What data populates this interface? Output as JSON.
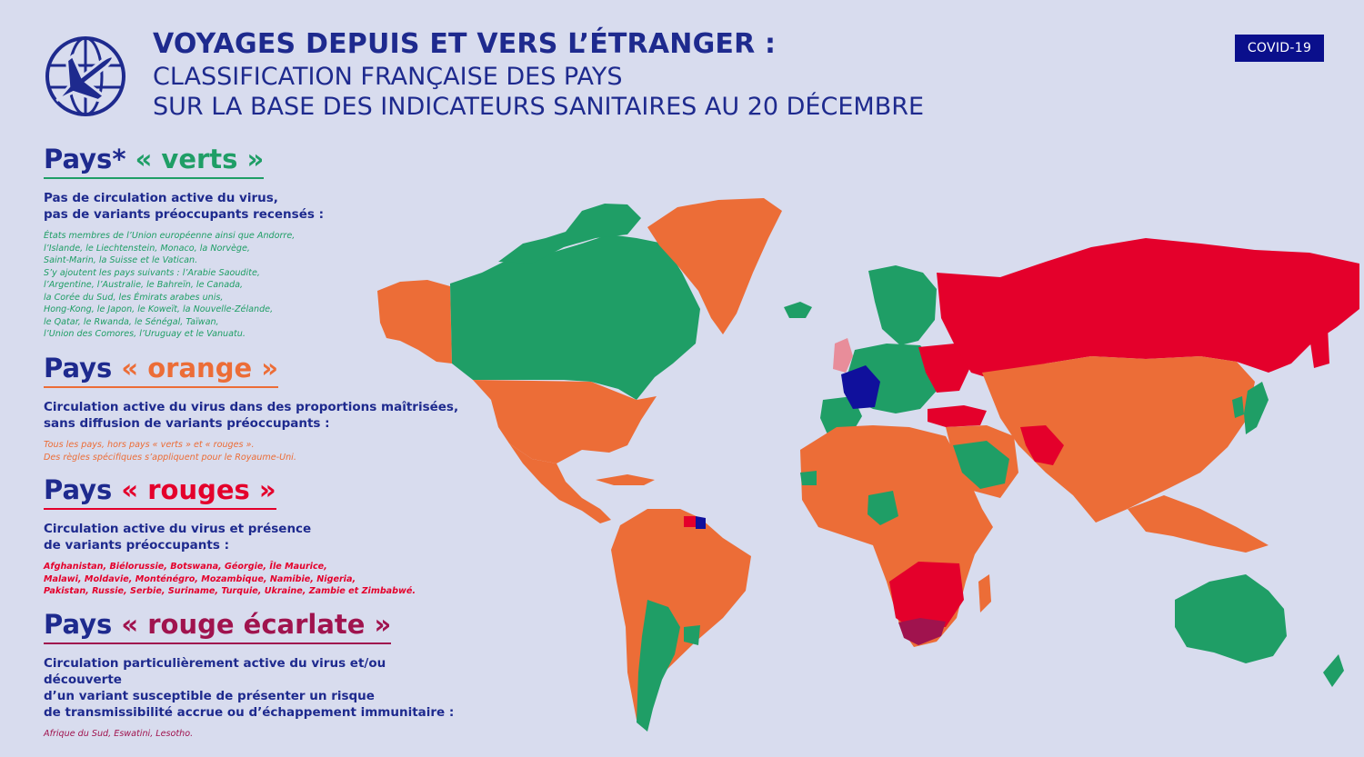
{
  "header": {
    "title": "VOYAGES DEPUIS ET VERS L’ÉTRANGER :",
    "subtitle_line1": "CLASSIFICATION FRANÇAISE DES PAYS",
    "subtitle_line2": "SUR LA BASE DES INDICATEURS SANITAIRES AU 20 DÉCEMBRE",
    "badge": "COVID-19",
    "logo_icon": "globe-airplane-icon"
  },
  "colors": {
    "navy": "#1e2a8e",
    "green": "#1f9e66",
    "orange": "#ec6d37",
    "red": "#e4002b",
    "scarlet": "#a0134e",
    "france": "#10109c",
    "uk": "#e88d9a",
    "background": "#d8dcee"
  },
  "legend": {
    "green": {
      "lead": "Pays* ",
      "label": "« verts »",
      "desc_line1": "Pas de circulation active du virus,",
      "desc_line2": "pas de variants préoccupants recensés :",
      "list": [
        "États membres de l’Union européenne ainsi que Andorre,",
        "l’Islande, le Liechtenstein, Monaco, la Norvège,",
        "Saint-Marin, la Suisse et le Vatican.",
        "S’y ajoutent les pays suivants : l’Arabie Saoudite,",
        "l’Argentine, l’Australie, le Bahreïn, le Canada,",
        "la Corée du Sud, les Émirats arabes unis,",
        "Hong-Kong, le Japon, le Koweït, la Nouvelle-Zélande,",
        "le Qatar, le Rwanda, le Sénégal, Taïwan,",
        "l’Union des Comores, l’Uruguay et le Vanuatu."
      ]
    },
    "orange": {
      "lead": "Pays ",
      "label": "« orange »",
      "desc_line1": "Circulation active du virus dans des proportions maîtrisées,",
      "desc_line2": "sans diffusion de variants préoccupants :",
      "list": [
        "Tous les pays, hors pays « verts » et « rouges ».",
        "Des règles spécifiques s’appliquent pour le Royaume-Uni."
      ]
    },
    "red": {
      "lead": "Pays ",
      "label": "« rouges »",
      "desc_line1": "Circulation active du virus et présence",
      "desc_line2": "de variants préoccupants :",
      "list": [
        "Afghanistan, Biélorussie, Botswana, Géorgie, Île Maurice,",
        "Malawi, Moldavie, Monténégro, Mozambique, Namibie, Nigeria,",
        "Pakistan, Russie, Serbie, Suriname, Turquie, Ukraine, Zambie et Zimbabwé."
      ]
    },
    "scarlet": {
      "lead": "Pays ",
      "label": "« rouge écarlate »",
      "desc_line1": "Circulation particulièrement active du virus et/ou découverte",
      "desc_line2": "d’un variant susceptible de présenter un risque",
      "desc_line3": "de transmissibilité accrue ou d’échappement immunitaire :",
      "list": [
        "Afrique du Sud, Eswatini, Lesotho."
      ]
    }
  }
}
